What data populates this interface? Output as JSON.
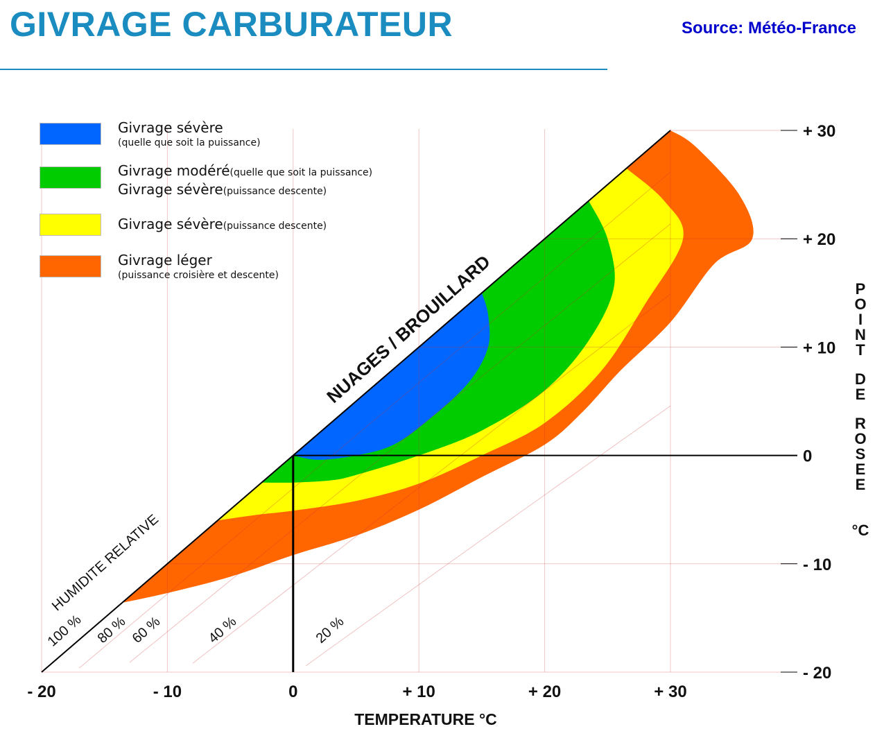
{
  "header": {
    "title": "GIVRAGE CARBURATEUR",
    "source": "Source: Météo-France"
  },
  "legend": [
    {
      "lines": [
        {
          "main": "Givrage sévère",
          "sub": ""
        },
        {
          "main": "",
          "sub": "(quelle que soit la puissance)"
        }
      ]
    },
    {
      "lines": [
        {
          "main": "Givrage modéré",
          "sub": "(quelle que soit la puissance)"
        },
        {
          "main": "Givrage sévère",
          "sub": "(puissance descente)"
        }
      ]
    },
    {
      "lines": [
        {
          "main": "Givrage sévère",
          "sub": "(puissance descente)"
        }
      ]
    },
    {
      "lines": [
        {
          "main": "Givrage léger",
          "sub": ""
        },
        {
          "main": "",
          "sub": "(puissance croisière et descente)"
        }
      ]
    }
  ],
  "chart_data": {
    "type": "area",
    "xlabel": "TEMPERATURE °C",
    "ylabel": "POINT DE ROSEE °C",
    "xlim": [
      -20,
      30
    ],
    "ylim": [
      -20,
      30
    ],
    "x_ticks": [
      "- 20",
      "- 10",
      "0",
      "+ 10",
      "+ 20",
      "+ 30"
    ],
    "x_tick_values": [
      -20,
      -10,
      0,
      10,
      20,
      30
    ],
    "y_ticks": [
      "+ 30",
      "+ 20",
      "+ 10",
      "0",
      "- 10",
      "- 20"
    ],
    "y_tick_values": [
      30,
      20,
      10,
      0,
      -10,
      -20
    ],
    "grid": true,
    "saturation_line_label": "NUAGES / BROUILLARD",
    "humidity_axis_label": "HUMIDITE RELATIVE",
    "humidity_labels": [
      {
        "text": "100 %",
        "rh": 100
      },
      {
        "text": "80 %",
        "rh": 80
      },
      {
        "text": "60 %",
        "rh": 60
      },
      {
        "text": "40 %",
        "rh": 40
      },
      {
        "text": "20 %",
        "rh": 20
      }
    ],
    "reference_lines": {
      "temperature": 0,
      "dew_point": 0
    },
    "regions": [
      {
        "name": "Givrage léger",
        "color": "#ff6600",
        "boundary": [
          [
            -13.6,
            -13.6
          ],
          [
            -10,
            -12.7
          ],
          [
            -5,
            -11.2
          ],
          [
            0,
            -9.2
          ],
          [
            5,
            -7.4
          ],
          [
            10,
            -5
          ],
          [
            15,
            -2
          ],
          [
            20,
            1
          ],
          [
            23,
            4
          ],
          [
            26,
            7.8
          ],
          [
            30,
            12.3
          ],
          [
            33.5,
            17.7
          ],
          [
            36.5,
            20
          ],
          [
            35.5,
            24
          ],
          [
            32,
            28.5
          ],
          [
            30,
            30
          ]
        ]
      },
      {
        "name": "Givrage sévère (puissance descente)",
        "color": "#ffff00",
        "boundary": [
          [
            -6,
            -6
          ],
          [
            -3,
            -5.5
          ],
          [
            0,
            -5.1
          ],
          [
            5,
            -4.2
          ],
          [
            10,
            -2.6
          ],
          [
            15,
            0
          ],
          [
            20,
            3
          ],
          [
            24.5,
            7.8
          ],
          [
            28,
            14
          ],
          [
            31,
            20
          ],
          [
            29.5,
            23.5
          ],
          [
            26.5,
            26.5
          ]
        ]
      },
      {
        "name": "Givrage modéré / sévère (puissance descente)",
        "color": "#00cc00",
        "boundary": [
          [
            -2.5,
            -2.5
          ],
          [
            0,
            -2.5
          ],
          [
            3,
            -2.3
          ],
          [
            5,
            -1.8
          ],
          [
            10,
            0
          ],
          [
            15,
            2.3
          ],
          [
            20,
            6
          ],
          [
            23.5,
            10.6
          ],
          [
            25.5,
            15.5
          ],
          [
            25,
            20
          ],
          [
            23.5,
            23.5
          ]
        ]
      },
      {
        "name": "Givrage sévère (quelle que soit la puissance)",
        "color": "#0066ff",
        "boundary": [
          [
            0,
            0
          ],
          [
            2,
            -0.4
          ],
          [
            5,
            0
          ],
          [
            8,
            1
          ],
          [
            11,
            3.5
          ],
          [
            14,
            6.8
          ],
          [
            15.5,
            10
          ],
          [
            15.5,
            13
          ],
          [
            15,
            15
          ]
        ]
      }
    ]
  },
  "colors": {
    "accent": "#1a8cbf",
    "source": "#0000cc",
    "severe": "#0066ff",
    "moderate": "#00cc00",
    "severe_descent": "#ffff00",
    "light": "#ff6600"
  }
}
